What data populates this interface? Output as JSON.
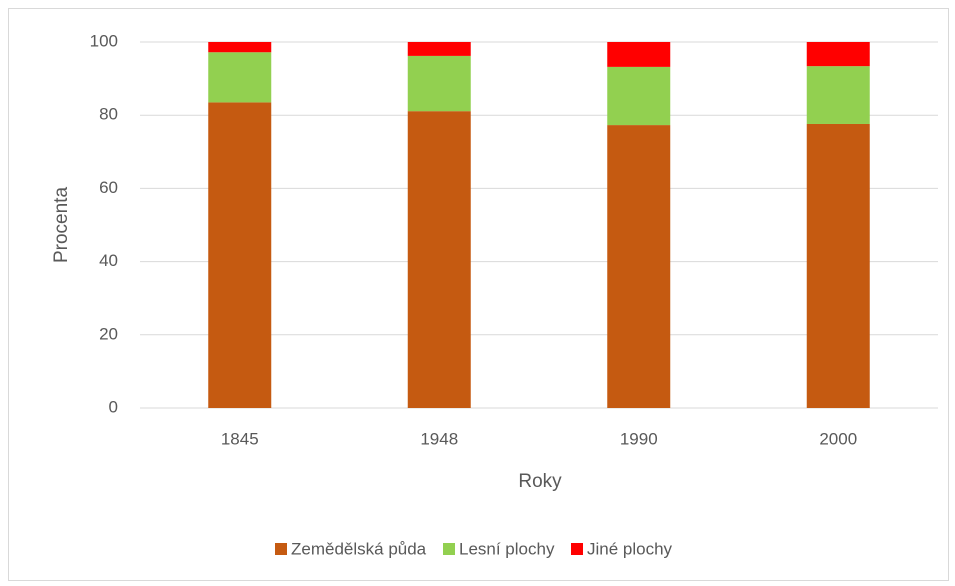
{
  "chart_data": {
    "type": "stacked_bar",
    "x_label": "Roky",
    "y_label": "Procenta",
    "categories": [
      "1845",
      "1948",
      "1990",
      "2000"
    ],
    "series": [
      {
        "name": "Zemědělská půda",
        "color": "#c55a11",
        "values": [
          83.5,
          81.1,
          77.3,
          77.6
        ]
      },
      {
        "name": "Lesní plochy",
        "color": "#92d050",
        "values": [
          13.7,
          15.1,
          15.9,
          15.8
        ]
      },
      {
        "name": "Jiné plochy",
        "color": "#ff0000",
        "values": [
          2.8,
          3.8,
          6.8,
          6.6
        ]
      }
    ],
    "ylim": [
      0,
      100
    ],
    "yticks": [
      0,
      20,
      40,
      60,
      80,
      100
    ],
    "grid": true,
    "legend": "bottom"
  }
}
